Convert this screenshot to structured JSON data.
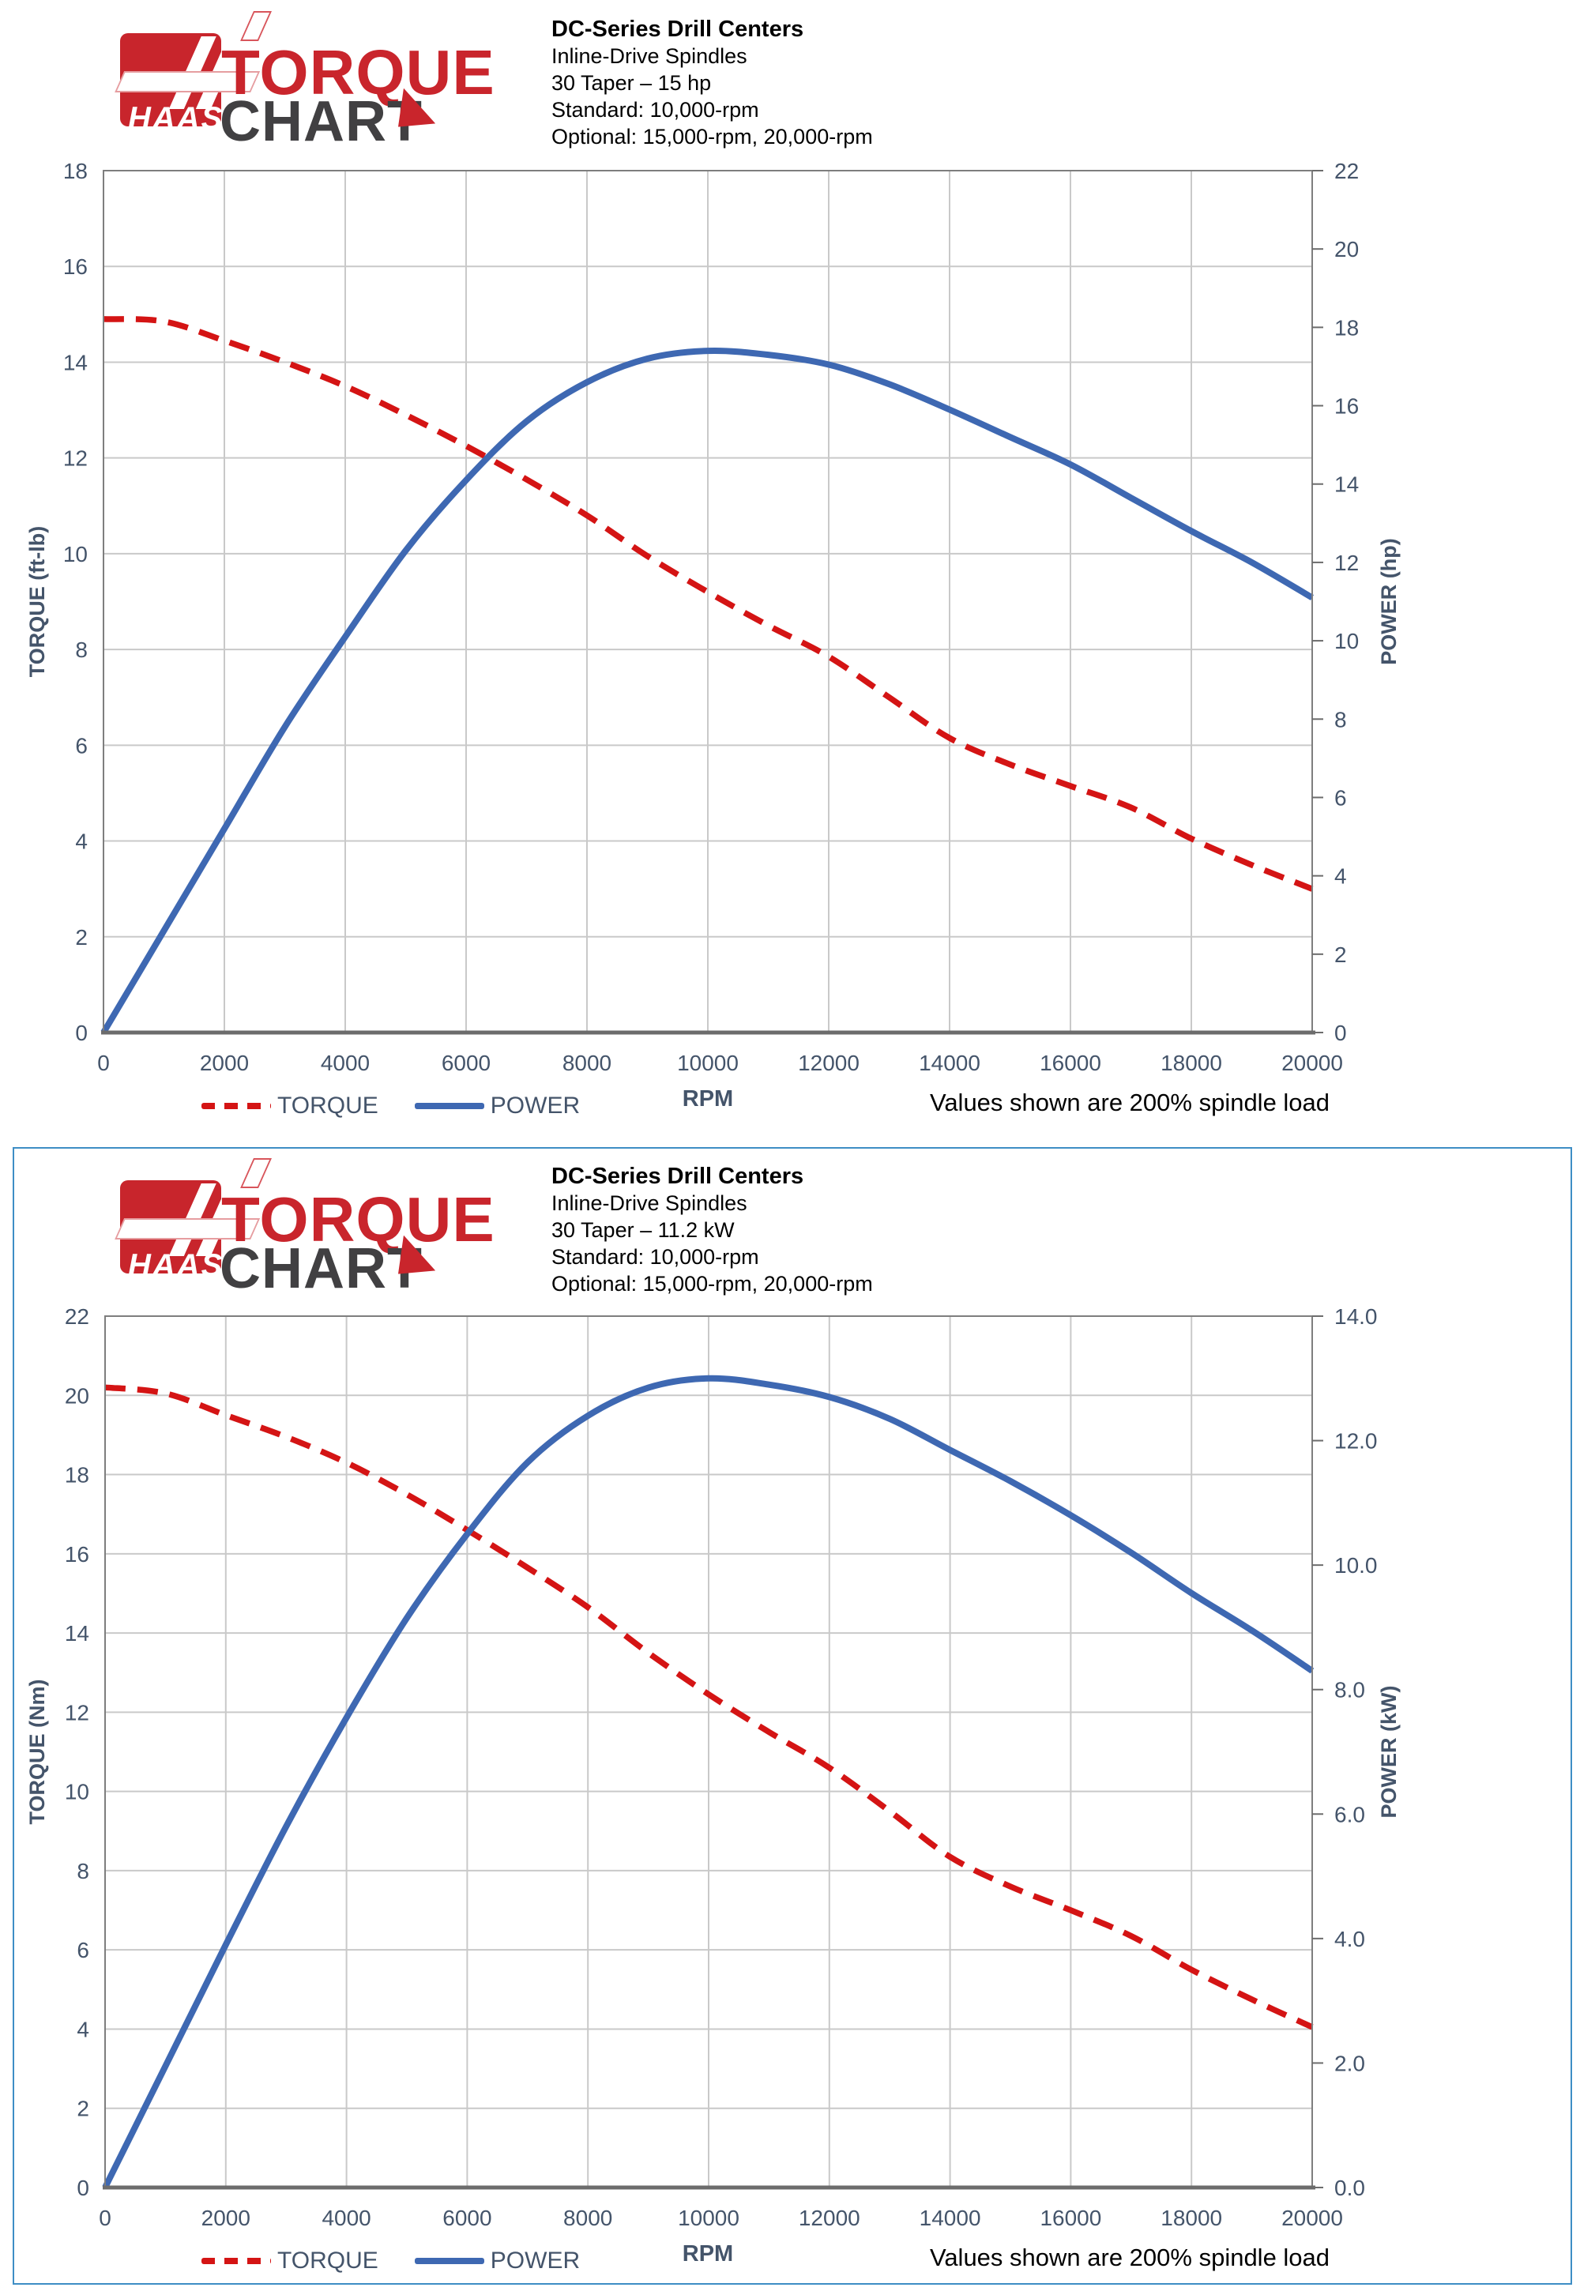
{
  "logo": {
    "haas": "HAAS",
    "torque": "TORQUE",
    "chart": "CHART"
  },
  "colors": {
    "torque_red": "#D41414",
    "power_blue": "#3E68B2",
    "axis_label": "#44546A",
    "gridline": "#C9C9C9",
    "plot_border": "#7E7E7E",
    "axis_line": "#6C6C6C",
    "frame_blue": "#3E8EC5",
    "logo_red": "#C9252C",
    "logo_gray": "#414042"
  },
  "charts": [
    {
      "header": {
        "title": "DC-Series Drill Centers",
        "lines": [
          "Inline-Drive Spindles",
          "30 Taper – 15 hp",
          "Standard: 10,000-rpm",
          "Optional: 15,000-rpm, 20,000-rpm"
        ]
      },
      "footnote": "Values shown are 200% spindle load",
      "chart_data": {
        "type": "line",
        "x": [
          0,
          1000,
          2000,
          3000,
          4000,
          5000,
          6000,
          7000,
          8000,
          9000,
          10000,
          11000,
          12000,
          13000,
          14000,
          15000,
          16000,
          17000,
          18000,
          19000,
          20000
        ],
        "x_axis": {
          "label": "RPM",
          "max": 20000,
          "tick_values": [
            0,
            2000,
            4000,
            6000,
            8000,
            10000,
            12000,
            14000,
            16000,
            18000,
            20000
          ],
          "tick_labels": [
            "0",
            "2000",
            "4000",
            "6000",
            "8000",
            "10000",
            "12000",
            "14000",
            "16000",
            "18000",
            "20000"
          ]
        },
        "left_axis": {
          "label": "TORQUE (ft-lb)",
          "max": 18,
          "tick_values": [
            0,
            2,
            4,
            6,
            8,
            10,
            12,
            14,
            16,
            18
          ],
          "tick_labels": [
            "0",
            "2",
            "4",
            "6",
            "8",
            "10",
            "12",
            "14",
            "16",
            "18"
          ]
        },
        "right_axis": {
          "label": "POWER (hp)",
          "max": 22,
          "tick_values": [
            0,
            2,
            4,
            6,
            8,
            10,
            12,
            14,
            16,
            18,
            20,
            22
          ],
          "tick_labels": [
            "0",
            "2",
            "4",
            "6",
            "8",
            "10",
            "12",
            "14",
            "16",
            "18",
            "20",
            "22"
          ]
        },
        "grid": true,
        "legend_position": "bottom-left",
        "series": [
          {
            "name": "TORQUE",
            "axis": "left",
            "style": "dashed",
            "color": "#D41414",
            "values": [
              14.9,
              14.85,
              14.45,
              14.0,
              13.5,
              12.9,
              12.25,
              11.55,
              10.8,
              9.95,
              9.2,
              8.5,
              7.85,
              7.0,
              6.15,
              5.6,
              5.15,
              4.7,
              4.05,
              3.5,
              3.0
            ]
          },
          {
            "name": "POWER",
            "axis": "right",
            "style": "solid",
            "color": "#3E68B2",
            "values": [
              0,
              2.6,
              5.2,
              7.8,
              10.1,
              12.3,
              14.1,
              15.6,
              16.6,
              17.2,
              17.4,
              17.3,
              17.05,
              16.55,
              15.9,
              15.2,
              14.5,
              13.65,
              12.8,
              12.0,
              11.1
            ]
          }
        ]
      }
    },
    {
      "header": {
        "title": "DC-Series Drill Centers",
        "lines": [
          "Inline-Drive Spindles",
          "30 Taper – 11.2 kW",
          "Standard: 10,000-rpm",
          "Optional: 15,000-rpm, 20,000-rpm"
        ]
      },
      "footnote": "Values shown are 200% spindle load",
      "chart_data": {
        "type": "line",
        "x": [
          0,
          1000,
          2000,
          3000,
          4000,
          5000,
          6000,
          7000,
          8000,
          9000,
          10000,
          11000,
          12000,
          13000,
          14000,
          15000,
          16000,
          17000,
          18000,
          19000,
          20000
        ],
        "x_axis": {
          "label": "RPM",
          "max": 20000,
          "tick_values": [
            0,
            2000,
            4000,
            6000,
            8000,
            10000,
            12000,
            14000,
            16000,
            18000,
            20000
          ],
          "tick_labels": [
            "0",
            "2000",
            "4000",
            "6000",
            "8000",
            "10000",
            "12000",
            "14000",
            "16000",
            "18000",
            "20000"
          ]
        },
        "left_axis": {
          "label": "TORQUE (Nm)",
          "max": 22,
          "tick_values": [
            0,
            2,
            4,
            6,
            8,
            10,
            12,
            14,
            16,
            18,
            20,
            22
          ],
          "tick_labels": [
            "0",
            "2",
            "4",
            "6",
            "8",
            "10",
            "12",
            "14",
            "16",
            "18",
            "20",
            "22"
          ]
        },
        "right_axis": {
          "label": "POWER (kW)",
          "max": 14,
          "tick_values": [
            0,
            2,
            4,
            6,
            8,
            10,
            12,
            14
          ],
          "tick_labels": [
            "0.0",
            "2.0",
            "4.0",
            "6.0",
            "8.0",
            "10.0",
            "12.0",
            "14.0"
          ]
        },
        "grid": true,
        "legend_position": "bottom-left",
        "series": [
          {
            "name": "TORQUE",
            "axis": "left",
            "style": "dashed",
            "color": "#D41414",
            "values": [
              20.2,
              20.05,
              19.5,
              18.95,
              18.3,
              17.5,
              16.6,
              15.65,
              14.65,
              13.5,
              12.45,
              11.5,
              10.6,
              9.5,
              8.35,
              7.6,
              7.0,
              6.35,
              5.5,
              4.75,
              4.05
            ]
          },
          {
            "name": "POWER",
            "axis": "right",
            "style": "solid",
            "color": "#3E68B2",
            "values": [
              0,
              1.95,
              3.9,
              5.8,
              7.55,
              9.15,
              10.5,
              11.65,
              12.4,
              12.85,
              13.0,
              12.9,
              12.7,
              12.35,
              11.85,
              11.35,
              10.8,
              10.2,
              9.55,
              8.95,
              8.3
            ]
          }
        ]
      }
    }
  ]
}
